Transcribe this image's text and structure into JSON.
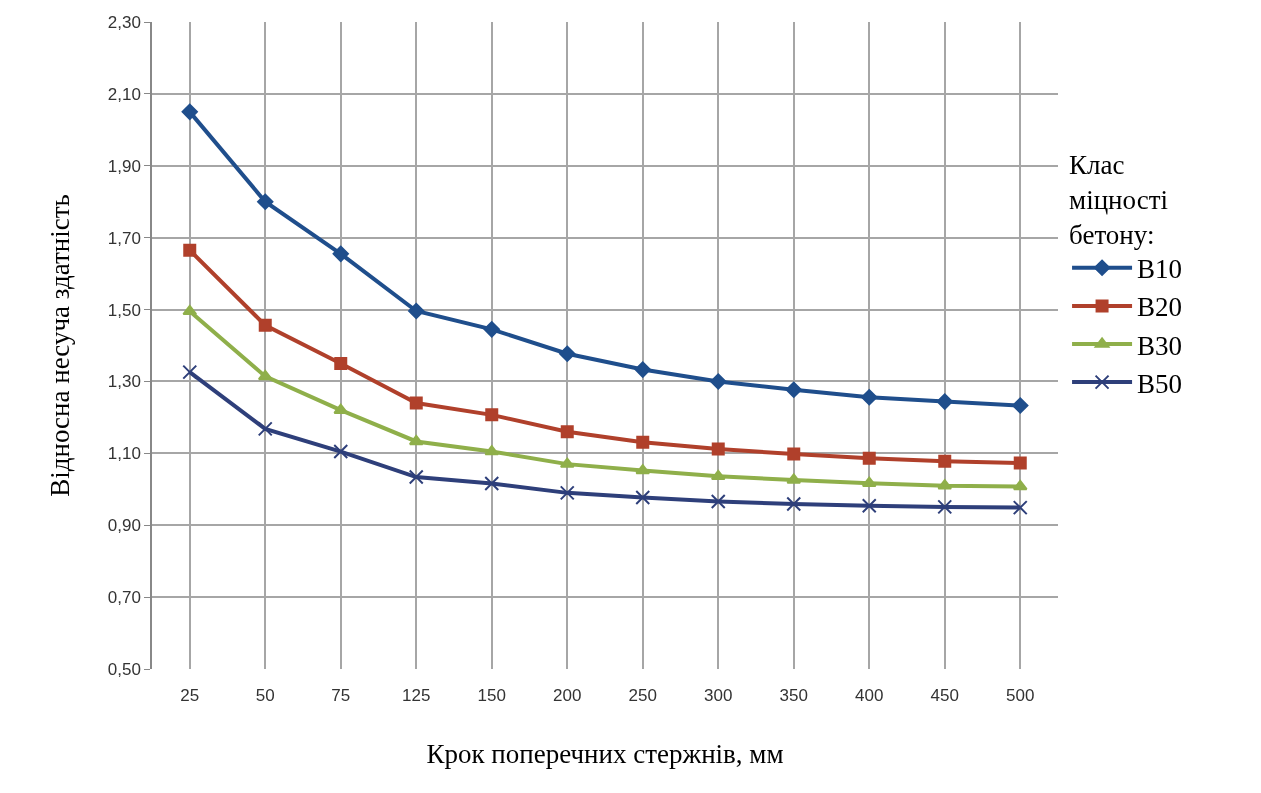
{
  "chart_data": {
    "type": "line",
    "xlabel": "Крок поперечних стержнів, мм",
    "ylabel": "Відносна несуча здатність",
    "legend_title": "Клас міцності бетону:",
    "categories": [
      "25",
      "50",
      "75",
      "125",
      "150",
      "200",
      "250",
      "300",
      "350",
      "400",
      "450",
      "500"
    ],
    "series": [
      {
        "name": "B10",
        "color": "#1f4e8c",
        "marker": "diamond",
        "values": [
          2.05,
          1.8,
          1.655,
          1.496,
          1.445,
          1.377,
          1.333,
          1.3,
          1.277,
          1.256,
          1.244,
          1.233
        ]
      },
      {
        "name": "B20",
        "color": "#b0402b",
        "marker": "square",
        "values": [
          1.665,
          1.456,
          1.35,
          1.24,
          1.207,
          1.16,
          1.131,
          1.112,
          1.098,
          1.086,
          1.078,
          1.073
        ]
      },
      {
        "name": "B30",
        "color": "#8faf4a",
        "marker": "triangle",
        "values": [
          1.495,
          1.314,
          1.22,
          1.133,
          1.105,
          1.07,
          1.052,
          1.036,
          1.026,
          1.017,
          1.01,
          1.008
        ]
      },
      {
        "name": "B50",
        "color": "#2e3f7a",
        "marker": "cross",
        "values": [
          1.326,
          1.168,
          1.105,
          1.034,
          1.016,
          0.99,
          0.977,
          0.966,
          0.959,
          0.954,
          0.951,
          0.949
        ]
      }
    ],
    "ylim": [
      0.5,
      2.3
    ],
    "yticks": [
      {
        "value": 0.5,
        "label": "0,50"
      },
      {
        "value": 0.7,
        "label": "0,70"
      },
      {
        "value": 0.9,
        "label": "0,90"
      },
      {
        "value": 1.1,
        "label": "1,10"
      },
      {
        "value": 1.3,
        "label": "1,30"
      },
      {
        "value": 1.5,
        "label": "1,50"
      },
      {
        "value": 1.7,
        "label": "1,70"
      },
      {
        "value": 1.9,
        "label": "1,90"
      },
      {
        "value": 2.1,
        "label": "2,10"
      },
      {
        "value": 2.3,
        "label": "2,30"
      }
    ],
    "grid": true,
    "legend": "right",
    "line_style": "solid"
  }
}
